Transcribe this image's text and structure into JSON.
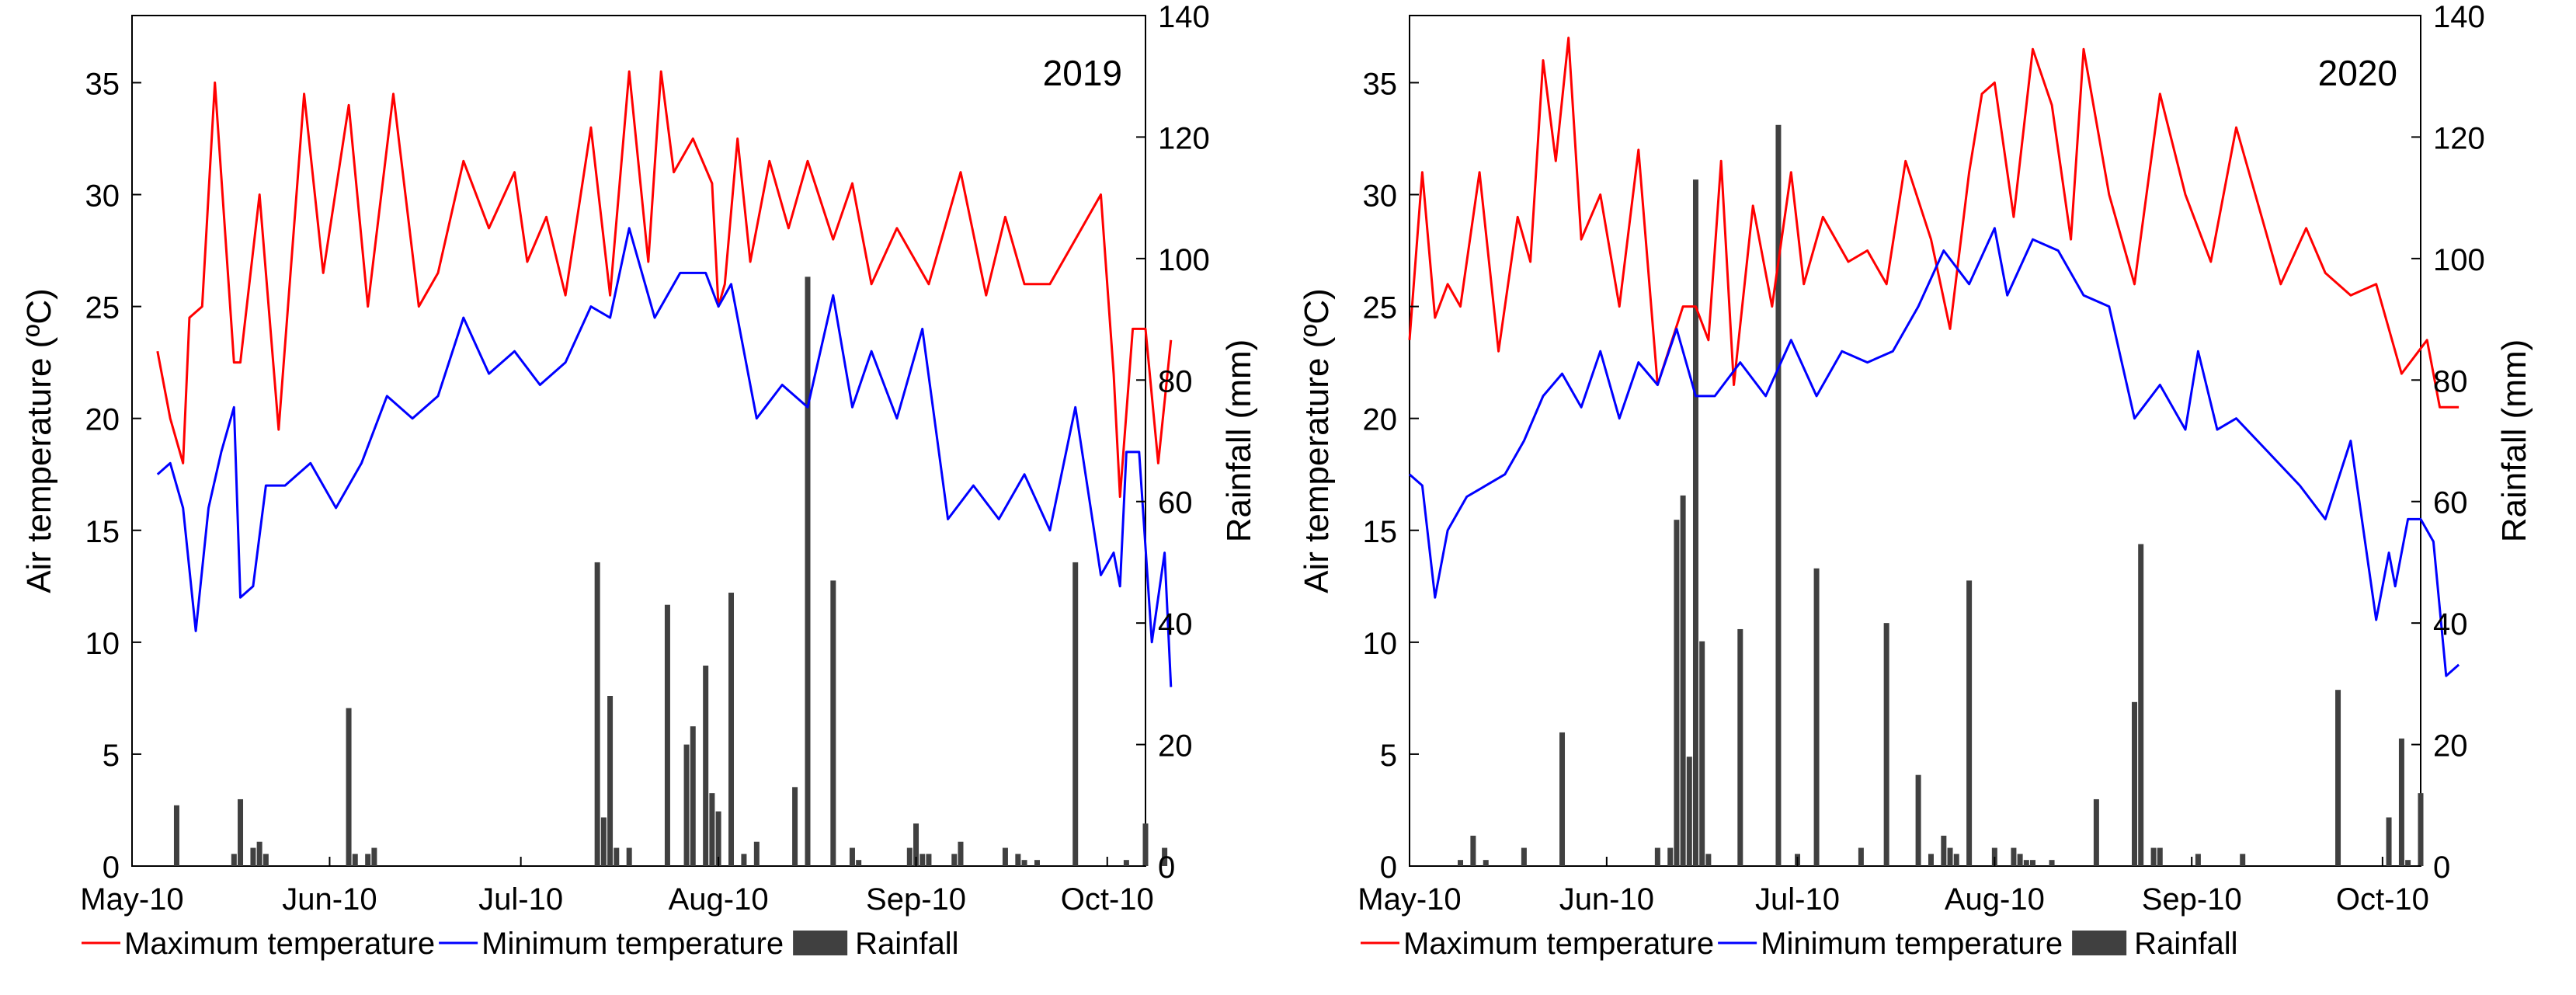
{
  "legend": {
    "max_label": "Maximum temperature",
    "min_label": "Minimum temperature",
    "rain_label": "Rainfall"
  },
  "colors": {
    "max": "#ff0000",
    "min": "#0000ff",
    "rain": "#404040"
  },
  "chart_data": [
    {
      "type": "line",
      "title": "2019",
      "ylabel": "Air temperature (ºC)",
      "y2label": "Rainfall (mm)",
      "xlabel": "",
      "ylim": [
        0,
        38
      ],
      "y2lim": [
        0,
        140
      ],
      "yticks": [
        0,
        5,
        10,
        15,
        20,
        25,
        30,
        35
      ],
      "y2ticks": [
        0,
        20,
        40,
        60,
        80,
        100,
        120,
        140
      ],
      "xrange": [
        0,
        159
      ],
      "xticks": [
        {
          "day": 0,
          "label": "May-10"
        },
        {
          "day": 31,
          "label": "Jun-10"
        },
        {
          "day": 61,
          "label": "Jul-10"
        },
        {
          "day": 92,
          "label": "Aug-10"
        },
        {
          "day": 123,
          "label": "Sep-10"
        },
        {
          "day": 153,
          "label": "Oct-10"
        }
      ],
      "legend_position": "bottom",
      "series": [
        {
          "name": "Maximum temperature",
          "role": "max",
          "x": [
            4,
            6,
            8,
            9,
            11,
            13,
            16,
            17,
            20,
            23,
            27,
            30,
            34,
            37,
            41,
            45,
            48,
            52,
            56,
            60,
            62,
            65,
            68,
            72,
            75,
            78,
            81,
            83,
            85,
            88,
            91,
            92,
            93,
            95,
            97,
            100,
            103,
            106,
            110,
            113,
            116,
            120,
            125,
            130,
            134,
            137,
            140,
            144,
            148,
            152,
            154,
            155,
            157,
            159,
            161,
            163
          ],
          "values": [
            23,
            20,
            18,
            24.5,
            25,
            35,
            22.5,
            22.5,
            30,
            19.5,
            34.5,
            26.5,
            34,
            25,
            34.5,
            25,
            26.5,
            31.5,
            28.5,
            31,
            27,
            29,
            25.5,
            33,
            25.5,
            35.5,
            27,
            35.5,
            31,
            32.5,
            30.5,
            25,
            26,
            32.5,
            27,
            31.5,
            28.5,
            31.5,
            28,
            30.5,
            26,
            28.5,
            26,
            31,
            25.5,
            29,
            26,
            26,
            28,
            30,
            22,
            16.5,
            24,
            24,
            18,
            23.5
          ]
        },
        {
          "name": "Minimum temperature",
          "role": "min",
          "x": [
            4,
            6,
            8,
            10,
            12,
            14,
            16,
            17,
            19,
            21,
            24,
            28,
            32,
            36,
            40,
            44,
            48,
            52,
            56,
            60,
            64,
            68,
            72,
            75,
            78,
            82,
            86,
            90,
            92,
            94,
            98,
            102,
            106,
            110,
            113,
            116,
            120,
            124,
            128,
            132,
            136,
            140,
            144,
            148,
            152,
            154,
            155,
            156,
            158,
            160,
            162,
            163
          ],
          "values": [
            17.5,
            18,
            16,
            10.5,
            16,
            18.5,
            20.5,
            12,
            12.5,
            17,
            17,
            18,
            16,
            18,
            21,
            20,
            21,
            24.5,
            22,
            23,
            21.5,
            22.5,
            25,
            24.5,
            28.5,
            24.5,
            26.5,
            26.5,
            25,
            26,
            20,
            21.5,
            20.5,
            25.5,
            20.5,
            23,
            20,
            24,
            15.5,
            17,
            15.5,
            17.5,
            15,
            20.5,
            13,
            14,
            12.5,
            18.5,
            18.5,
            10,
            14,
            8
          ]
        },
        {
          "name": "Rainfall",
          "role": "rain",
          "kind": "bar",
          "x": [
            7,
            16,
            17,
            19,
            20,
            21,
            34,
            35,
            37,
            38,
            73,
            74,
            75,
            76,
            78,
            84,
            87,
            88,
            90,
            91,
            92,
            94,
            96,
            98,
            104,
            106,
            110,
            113,
            114,
            122,
            123,
            124,
            125,
            129,
            130,
            137,
            139,
            140,
            142,
            148,
            156,
            159,
            162
          ],
          "values": [
            10,
            2,
            11,
            3,
            4,
            2,
            26,
            2,
            2,
            3,
            50,
            8,
            28,
            3,
            3,
            43,
            20,
            23,
            33,
            12,
            9,
            45,
            2,
            4,
            13,
            97,
            47,
            3,
            1,
            3,
            7,
            2,
            2,
            2,
            4,
            3,
            2,
            1,
            1,
            50,
            1,
            7,
            3
          ]
        }
      ]
    },
    {
      "type": "line",
      "title": "2020",
      "ylabel": "Air temperature (ºC)",
      "y2label": "Rainfall (mm)",
      "xlabel": "",
      "ylim": [
        0,
        38
      ],
      "y2lim": [
        0,
        140
      ],
      "yticks": [
        0,
        5,
        10,
        15,
        20,
        25,
        30,
        35
      ],
      "y2ticks": [
        0,
        20,
        40,
        60,
        80,
        100,
        120,
        140
      ],
      "xrange": [
        0,
        159
      ],
      "xticks": [
        {
          "day": 0,
          "label": "May-10"
        },
        {
          "day": 31,
          "label": "Jun-10"
        },
        {
          "day": 61,
          "label": "Jul-10"
        },
        {
          "day": 92,
          "label": "Aug-10"
        },
        {
          "day": 123,
          "label": "Sep-10"
        },
        {
          "day": 153,
          "label": "Oct-10"
        }
      ],
      "legend_position": "bottom",
      "series": [
        {
          "name": "Maximum temperature",
          "role": "max",
          "x": [
            0,
            2,
            4,
            6,
            8,
            11,
            14,
            17,
            19,
            21,
            23,
            25,
            27,
            30,
            33,
            36,
            39,
            43,
            45,
            47,
            49,
            51,
            54,
            57,
            60,
            62,
            65,
            69,
            72,
            75,
            78,
            82,
            85,
            88,
            90,
            92,
            95,
            98,
            101,
            104,
            106,
            110,
            114,
            118,
            122,
            126,
            130,
            133,
            137,
            141,
            144,
            148,
            152,
            156,
            160,
            162,
            165
          ],
          "values": [
            23.5,
            31,
            24.5,
            26,
            25,
            31,
            23,
            29,
            27,
            36,
            31.5,
            37,
            28,
            30,
            25,
            32,
            21.5,
            25,
            25,
            23.5,
            31.5,
            21.5,
            29.5,
            25,
            31,
            26,
            29,
            27,
            27.5,
            26,
            31.5,
            28,
            24,
            31,
            34.5,
            35,
            29,
            36.5,
            34,
            28,
            36.5,
            30,
            26,
            34.5,
            30,
            27,
            33,
            30,
            26,
            28.5,
            26.5,
            25.5,
            26,
            22,
            23.5,
            20.5,
            20.5
          ]
        },
        {
          "name": "Minimum temperature",
          "role": "min",
          "x": [
            0,
            2,
            4,
            6,
            9,
            12,
            15,
            18,
            21,
            24,
            27,
            30,
            33,
            36,
            39,
            42,
            45,
            48,
            52,
            56,
            60,
            64,
            68,
            72,
            76,
            80,
            84,
            88,
            92,
            94,
            98,
            102,
            106,
            110,
            114,
            118,
            122,
            124,
            127,
            130,
            135,
            140,
            144,
            148,
            152,
            154,
            155,
            157,
            159,
            161,
            163,
            165
          ],
          "values": [
            17.5,
            17,
            12,
            15,
            16.5,
            17,
            17.5,
            19,
            21,
            22,
            20.5,
            23,
            20,
            22.5,
            21.5,
            24,
            21,
            21,
            22.5,
            21,
            23.5,
            21,
            23,
            22.5,
            23,
            25,
            27.5,
            26,
            28.5,
            25.5,
            28,
            27.5,
            25.5,
            25,
            20,
            21.5,
            19.5,
            23,
            19.5,
            20,
            18.5,
            17,
            15.5,
            19,
            11,
            14,
            12.5,
            15.5,
            15.5,
            14.5,
            8.5,
            9
          ]
        },
        {
          "name": "Rainfall",
          "role": "rain",
          "kind": "bar",
          "x": [
            8,
            10,
            12,
            18,
            24,
            39,
            41,
            42,
            43,
            44,
            45,
            46,
            47,
            52,
            58,
            61,
            64,
            71,
            75,
            80,
            82,
            84,
            85,
            86,
            88,
            92,
            95,
            96,
            97,
            98,
            101,
            108,
            114,
            115,
            117,
            118,
            124,
            131,
            146,
            154,
            156,
            157,
            159
          ],
          "values": [
            1,
            5,
            1,
            3,
            22,
            3,
            3,
            57,
            61,
            18,
            113,
            37,
            2,
            39,
            122,
            2,
            49,
            3,
            40,
            15,
            2,
            5,
            3,
            2,
            47,
            3,
            3,
            2,
            1,
            1,
            1,
            11,
            27,
            53,
            3,
            3,
            2,
            2,
            29,
            8,
            21,
            1,
            12
          ]
        }
      ]
    }
  ]
}
